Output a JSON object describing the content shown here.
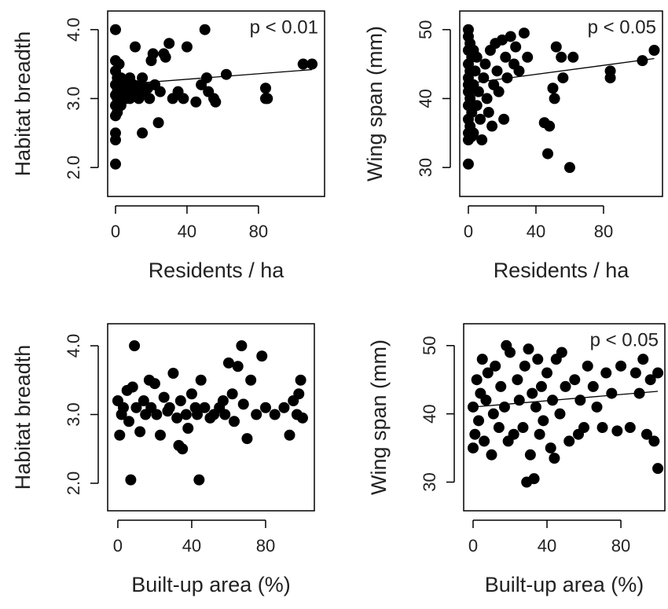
{
  "chart_data": [
    {
      "type": "scatter",
      "xlabel": "Residents / ha",
      "ylabel": "Habitat breadth",
      "annotation": "p < 0.01",
      "color": "#000000",
      "xlim": [
        -4.4,
        117
      ],
      "ylim": [
        1.58,
        4.27
      ],
      "xticks": [
        0,
        40,
        80
      ],
      "yticks": [
        {
          "value": 2,
          "label": "2.0"
        },
        {
          "value": 3,
          "label": "3.0"
        },
        {
          "value": 4,
          "label": "4.0"
        }
      ],
      "x": [
        0,
        0,
        0,
        0,
        0,
        0,
        0,
        0,
        0,
        0,
        1,
        1,
        1,
        1,
        2,
        2,
        2,
        3,
        3,
        3,
        4,
        4,
        5,
        5,
        6,
        6,
        7,
        8,
        8,
        9,
        10,
        10,
        11,
        12,
        13,
        14,
        15,
        15,
        16,
        18,
        19,
        20,
        21,
        22,
        24,
        25,
        27,
        28,
        30,
        32,
        35,
        38,
        40,
        45,
        48,
        50,
        51,
        52,
        55,
        56,
        62,
        84,
        84,
        85,
        105,
        110
      ],
      "y": [
        4.0,
        2.05,
        2.4,
        2.5,
        2.75,
        2.9,
        3.05,
        3.2,
        3.4,
        3.55,
        3.0,
        3.1,
        3.3,
        2.8,
        3.0,
        3.2,
        3.5,
        2.9,
        3.1,
        3.3,
        3.0,
        3.15,
        3.05,
        3.25,
        3.0,
        3.2,
        3.1,
        3.0,
        3.3,
        3.1,
        3.05,
        3.2,
        3.75,
        3.1,
        3.0,
        3.2,
        2.5,
        3.3,
        3.1,
        3.15,
        3.0,
        3.55,
        3.65,
        3.2,
        2.65,
        3.1,
        3.65,
        3.6,
        3.8,
        3.0,
        3.1,
        3.0,
        3.75,
        2.95,
        3.2,
        4.0,
        3.3,
        3.1,
        3.0,
        2.95,
        3.35,
        3.15,
        3.0,
        3.0,
        3.5,
        3.5
      ],
      "fit": {
        "x": [
          0,
          110
        ],
        "y": [
          3.2,
          3.42
        ]
      }
    },
    {
      "type": "scatter",
      "xlabel": "Residents / ha",
      "ylabel": "Wing span (mm)",
      "annotation": "p < 0.05",
      "color": "#000000",
      "xlim": [
        -5.1,
        114.9
      ],
      "ylim": [
        25.8,
        52.7
      ],
      "xticks": [
        0,
        40,
        80
      ],
      "yticks": [
        30,
        40,
        50
      ],
      "x": [
        0,
        0,
        0,
        0,
        0,
        0,
        0,
        0,
        0,
        0,
        0,
        0,
        1,
        1,
        1,
        1,
        2,
        2,
        2,
        3,
        3,
        3,
        4,
        5,
        5,
        6,
        7,
        8,
        9,
        10,
        11,
        12,
        13,
        14,
        15,
        16,
        17,
        18,
        20,
        21,
        22,
        23,
        25,
        27,
        28,
        30,
        33,
        35,
        45,
        47,
        48,
        50,
        51,
        52,
        55,
        56,
        60,
        62,
        84,
        84,
        103,
        110
      ],
      "y": [
        50,
        49,
        47,
        45,
        43,
        41,
        39,
        37,
        35,
        34,
        30.5,
        42,
        48,
        44,
        40,
        36,
        46,
        38,
        34.5,
        47,
        42,
        35,
        44,
        39,
        46,
        41,
        37,
        34,
        43,
        45,
        40,
        38,
        47,
        36,
        42,
        48,
        44,
        41,
        48.5,
        37,
        46,
        43,
        49,
        45,
        47.5,
        44,
        49.5,
        46,
        36.5,
        32,
        36,
        41.5,
        40,
        47.5,
        46,
        43,
        30,
        46,
        44,
        43,
        45.5,
        47
      ],
      "fit": {
        "x": [
          0,
          110
        ],
        "y": [
          42.2,
          45.8
        ]
      }
    },
    {
      "type": "scatter",
      "xlabel": "Built-up area (%)",
      "ylabel": "Habitat breadth",
      "color": "#000000",
      "xlim": [
        -5.5,
        106.4
      ],
      "ylim": [
        1.6,
        4.32
      ],
      "xticks": [
        0,
        40,
        80
      ],
      "yticks": [
        {
          "value": 2,
          "label": "2.0"
        },
        {
          "value": 3,
          "label": "3.0"
        },
        {
          "value": 4,
          "label": "4.0"
        }
      ],
      "x": [
        0,
        1,
        2,
        3,
        5,
        6,
        7,
        8,
        9,
        10,
        12,
        14,
        15,
        17,
        18,
        20,
        21,
        23,
        25,
        27,
        28,
        30,
        32,
        33,
        34,
        35,
        37,
        38,
        40,
        42,
        43,
        44,
        45,
        47,
        50,
        52,
        55,
        57,
        58,
        60,
        62,
        63,
        65,
        67,
        68,
        70,
        72,
        75,
        78,
        80,
        85,
        90,
        93,
        95,
        97,
        98,
        99,
        100
      ],
      "y": [
        3.2,
        2.7,
        3.0,
        3.1,
        3.35,
        2.9,
        2.05,
        3.4,
        4.0,
        3.1,
        2.75,
        3.2,
        3.0,
        3.5,
        3.1,
        3.45,
        3.0,
        2.7,
        3.25,
        3.05,
        3.1,
        3.6,
        2.95,
        2.55,
        3.2,
        2.5,
        3.0,
        2.8,
        3.3,
        3.1,
        3.0,
        2.05,
        3.5,
        3.1,
        2.95,
        3.0,
        3.1,
        3.2,
        3.0,
        3.75,
        3.3,
        2.9,
        3.7,
        4.0,
        3.15,
        2.65,
        3.5,
        3.0,
        3.85,
        3.1,
        3.0,
        3.1,
        2.7,
        3.2,
        3.0,
        3.3,
        3.5,
        2.95
      ]
    },
    {
      "type": "scatter",
      "xlabel": "Built-up area (%)",
      "ylabel": "Wing span (mm)",
      "annotation": "p < 0.05",
      "color": "#000000",
      "xlim": [
        -5.1,
        103.8
      ],
      "ylim": [
        25.8,
        53.2
      ],
      "xticks": [
        0,
        40,
        80
      ],
      "yticks": [
        30,
        40,
        50
      ],
      "x": [
        0,
        0,
        1,
        2,
        3,
        4,
        5,
        6,
        7,
        8,
        10,
        11,
        12,
        14,
        15,
        17,
        18,
        19,
        20,
        22,
        24,
        25,
        27,
        28,
        29,
        30,
        31,
        32,
        33,
        34,
        35,
        36,
        37,
        38,
        40,
        42,
        43,
        44,
        45,
        47,
        48,
        50,
        52,
        55,
        57,
        58,
        60,
        62,
        65,
        67,
        70,
        72,
        75,
        78,
        80,
        85,
        88,
        90,
        92,
        94,
        96,
        98,
        100,
        100
      ],
      "y": [
        35,
        41,
        37,
        45,
        39,
        43,
        48,
        36,
        42,
        46,
        34,
        40,
        47,
        38,
        44,
        41,
        50,
        36,
        49,
        37,
        45,
        42,
        38,
        47,
        30,
        49.5,
        34,
        43,
        30.5,
        41,
        48,
        37,
        44,
        39,
        46,
        35,
        42,
        33.5,
        48,
        40,
        49,
        44,
        36,
        45,
        37,
        42,
        38,
        47,
        44,
        41,
        38,
        46,
        43,
        37.5,
        47,
        38,
        46,
        43,
        48,
        37,
        45,
        36,
        46,
        32
      ],
      "fit": {
        "x": [
          0,
          100
        ],
        "y": [
          41,
          43.3
        ]
      }
    }
  ]
}
